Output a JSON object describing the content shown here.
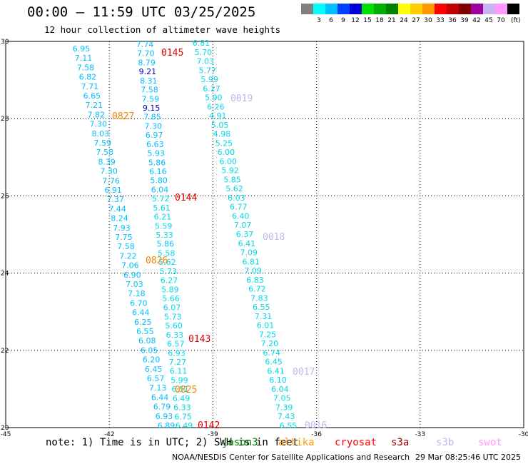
{
  "header": {
    "title": "00:00 – 11:59 UTC 03/25/2025",
    "subtitle": "12 hour collection of altimeter wave heights"
  },
  "legend": {
    "unit": "(ft)",
    "items": [
      {
        "color": "#808080",
        "label": ""
      },
      {
        "color": "#00ffff",
        "label": "3"
      },
      {
        "color": "#00bfff",
        "label": "6"
      },
      {
        "color": "#0040ff",
        "label": "9"
      },
      {
        "color": "#0000d0",
        "label": "12"
      },
      {
        "color": "#00e000",
        "label": "15"
      },
      {
        "color": "#00b000",
        "label": "18"
      },
      {
        "color": "#008000",
        "label": "21"
      },
      {
        "color": "#ffff00",
        "label": "24"
      },
      {
        "color": "#ffcc00",
        "label": "27"
      },
      {
        "color": "#ff9900",
        "label": "30"
      },
      {
        "color": "#ff0000",
        "label": "33"
      },
      {
        "color": "#c00000",
        "label": "36"
      },
      {
        "color": "#800000",
        "label": "39"
      },
      {
        "color": "#a000a0",
        "label": "42"
      },
      {
        "color": "#c8b4f0",
        "label": "45"
      },
      {
        "color": "#ff99ff",
        "label": "70"
      },
      {
        "color": "#000000",
        "label": ""
      }
    ]
  },
  "map": {
    "lon_range": [
      -45,
      -30
    ],
    "lat_range": [
      20,
      30
    ],
    "x_ticks": [
      "-45",
      "-42",
      "-39",
      "-36",
      "-33",
      "-30"
    ],
    "y_ticks": [
      "20",
      "22",
      "24",
      "26",
      "28",
      "30"
    ],
    "labels": {
      "0145": "0145",
      "0019": "0019",
      "0827": "0827",
      "0144": "0144",
      "0018": "0018",
      "0826": "0826",
      "0143": "0143",
      "0017": "0017",
      "0825": "0825",
      "0142": "0142",
      "0016": "0016"
    },
    "label_colors": {
      "j3": "#dd0000",
      "s6": "#c8b4f0",
      "alt": "#ee8800"
    },
    "value_colors": {
      "low": "#00bfff",
      "mid": "#00d8e8",
      "high": "#0000c0"
    },
    "track1": [
      "6.95",
      "7.11",
      "7.58",
      "6.82",
      "7.71",
      "6.65",
      "7.21",
      "7.82",
      "7.30",
      "8.03",
      "7.59",
      "7.58",
      "8.39",
      "7.30",
      "7.76",
      "6.91",
      "7.37",
      "7.44",
      "8.24",
      "7.93",
      "7.75",
      "7.58",
      "7.22",
      "7.06",
      "6.90",
      "7.03",
      "7.18",
      "6.70",
      "6.44",
      "6.25",
      "6.55",
      "6.08",
      "6.05",
      "6.20",
      "6.45",
      "6.57",
      "7.13",
      "6.44",
      "6.79",
      "6.93",
      "6.89"
    ],
    "track2": [
      "7.74",
      "7.70",
      "8.79",
      "9.21",
      "8.31",
      "7.58",
      "7.59",
      "9.15",
      "7.85",
      "7.30",
      "6.97",
      "6.63",
      "5.93",
      "5.86",
      "6.16",
      "5.80",
      "6.04",
      "5.72",
      "5.61",
      "6.21",
      "5.59",
      "5.33",
      "5.86",
      "5.58",
      "5.62",
      "5.73",
      "6.27",
      "5.89",
      "5.66",
      "6.07",
      "5.73",
      "5.60",
      "6.33",
      "6.57",
      "6.93",
      "7.27",
      "6.11",
      "5.99",
      "6.51",
      "6.49",
      "6.33",
      "6.75",
      "6.49"
    ],
    "track3": [
      "6.81",
      "5.70",
      "7.03",
      "5.77",
      "5.99",
      "6.27",
      "5.90",
      "6.26",
      "4.91",
      "5.05",
      "4.98",
      "5.25",
      "6.00",
      "6.00",
      "5.92",
      "5.85",
      "5.62",
      "6.03",
      "6.77",
      "6.40",
      "7.07",
      "6.37",
      "6.41",
      "7.09",
      "6.81",
      "7.09",
      "6.83",
      "6.72",
      "7.83",
      "6.55",
      "7.31",
      "6.01",
      "7.25",
      "7.20",
      "6.74",
      "6.45",
      "6.41",
      "6.10",
      "6.04",
      "7.05",
      "7.39",
      "7.43",
      "6.55"
    ],
    "high_values": [
      "9.21",
      "9.15"
    ],
    "low_values_t2": [
      "7.74",
      "7.70",
      "8.79",
      "8.31",
      "7.58",
      "7.59",
      "7.85",
      "7.30",
      "6.97",
      "6.63",
      "5.93",
      "5.86",
      "6.16",
      "5.80",
      "6.04"
    ]
  },
  "footer": {
    "note": "note: 1) Time is in UTC; 2) SWH is in feet",
    "satellites": [
      {
        "name": "jason3",
        "color": "#008000"
      },
      {
        "name": "altika",
        "color": "#ff9900"
      },
      {
        "name": "cryosat",
        "color": "#ff0000"
      },
      {
        "name": "s3a",
        "color": "#990000"
      },
      {
        "name": "s3b",
        "color": "#c8b4f0"
      },
      {
        "name": "swot",
        "color": "#ff99ff"
      }
    ],
    "credit": "NOAA/NESDIS Center for Satellite Applications and Research",
    "timestamp": "29 Mar 08:25:46 UTC 2025"
  }
}
